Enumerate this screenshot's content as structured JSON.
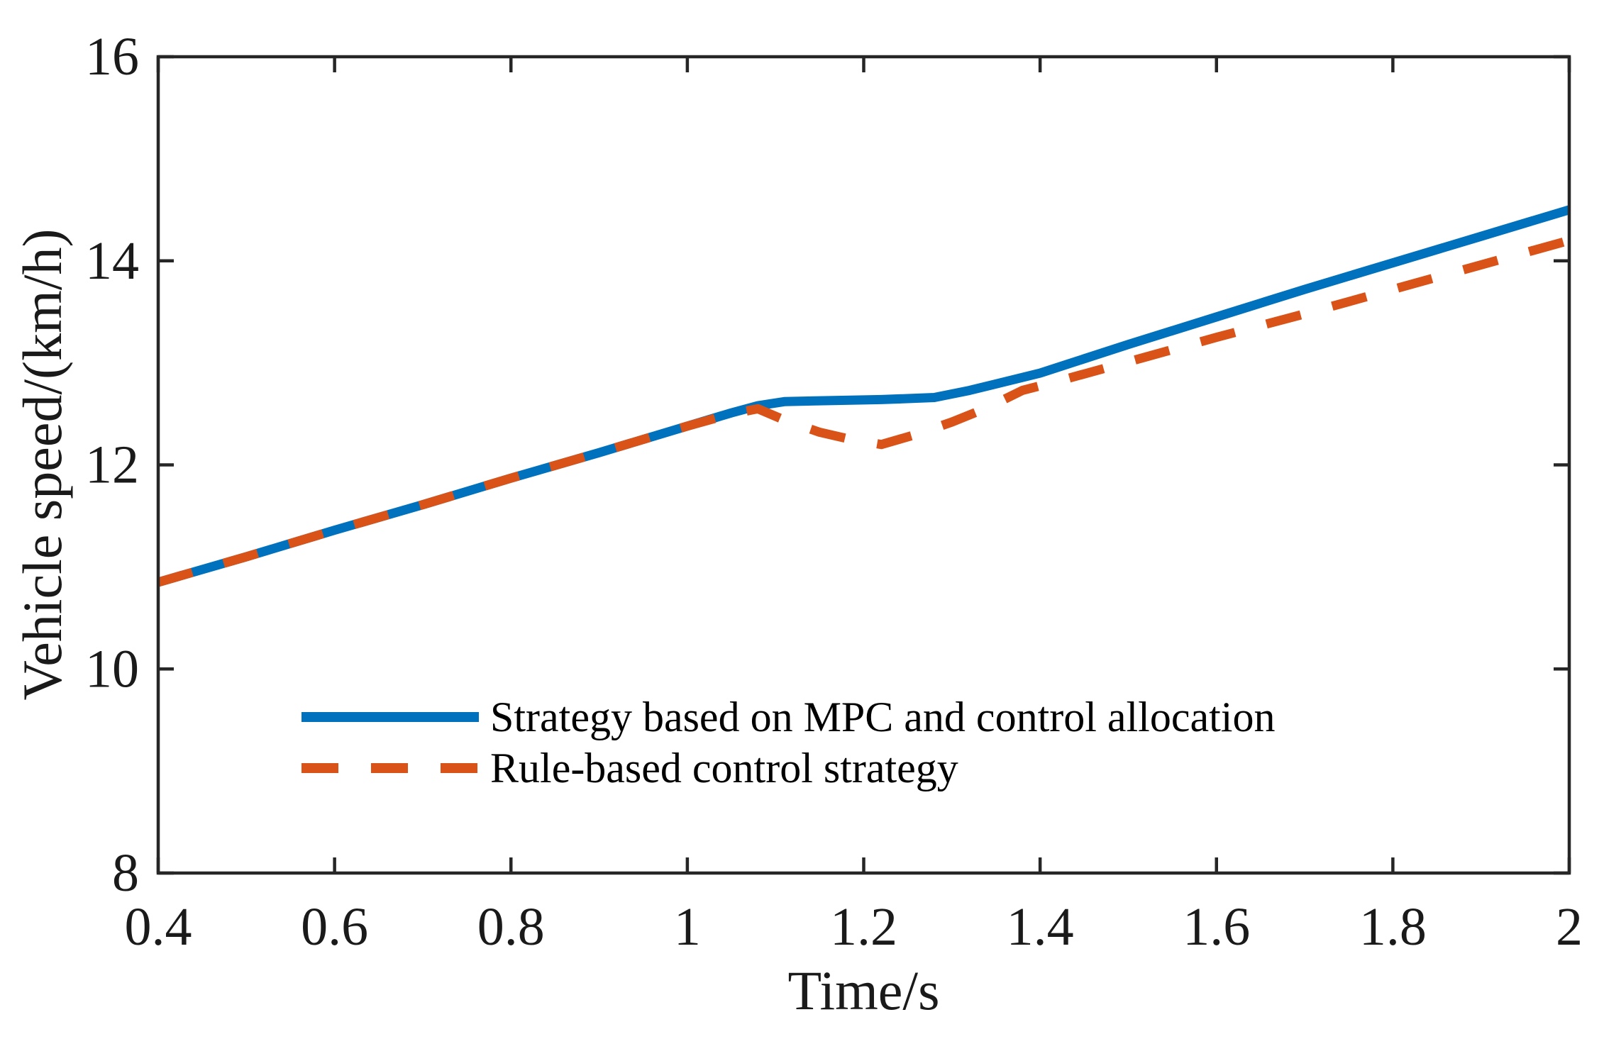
{
  "figure": {
    "background_color": "#ffffff",
    "axis_color": "#262626",
    "text_color": "#1a1a1a"
  },
  "chart_data": {
    "type": "line",
    "title": "",
    "xlabel": "Time/s",
    "ylabel": "Vehicle speed/(km/h)",
    "xlim": [
      0.4,
      2
    ],
    "ylim": [
      8,
      16
    ],
    "x_ticks": [
      0.4,
      0.6,
      0.8,
      1,
      1.2,
      1.4,
      1.6,
      1.8,
      2
    ],
    "x_tick_labels": [
      "0.4",
      "0.6",
      "0.8",
      "1",
      "1.2",
      "1.4",
      "1.6",
      "1.8",
      "2"
    ],
    "y_ticks": [
      8,
      10,
      12,
      14,
      16
    ],
    "y_tick_labels": [
      "8",
      "10",
      "12",
      "14",
      "16"
    ],
    "grid": false,
    "tick_direction": "in",
    "box": true,
    "legend_position": "inside-lower-left",
    "series": [
      {
        "name": "Strategy based on MPC and control allocation",
        "color": "#0072BD",
        "style": "solid",
        "dash": null,
        "points": [
          [
            0.4,
            10.85
          ],
          [
            0.5,
            11.1
          ],
          [
            0.6,
            11.36
          ],
          [
            0.7,
            11.61
          ],
          [
            0.8,
            11.87
          ],
          [
            0.9,
            12.12
          ],
          [
            1.0,
            12.38
          ],
          [
            1.05,
            12.51
          ],
          [
            1.08,
            12.58
          ],
          [
            1.11,
            12.62
          ],
          [
            1.16,
            12.63
          ],
          [
            1.22,
            12.64
          ],
          [
            1.28,
            12.66
          ],
          [
            1.32,
            12.73
          ],
          [
            1.4,
            12.9
          ],
          [
            1.5,
            13.18
          ],
          [
            1.6,
            13.45
          ],
          [
            1.7,
            13.72
          ],
          [
            1.8,
            13.98
          ],
          [
            1.9,
            14.24
          ],
          [
            2.0,
            14.5
          ]
        ]
      },
      {
        "name": "Rule-based control strategy",
        "color": "#D95319",
        "style": "dashed",
        "dash": [
          50,
          46
        ],
        "points": [
          [
            0.4,
            10.85
          ],
          [
            0.5,
            11.1
          ],
          [
            0.6,
            11.36
          ],
          [
            0.7,
            11.61
          ],
          [
            0.8,
            11.87
          ],
          [
            0.9,
            12.12
          ],
          [
            1.0,
            12.38
          ],
          [
            1.05,
            12.5
          ],
          [
            1.08,
            12.55
          ],
          [
            1.11,
            12.44
          ],
          [
            1.15,
            12.32
          ],
          [
            1.18,
            12.26
          ],
          [
            1.22,
            12.2
          ],
          [
            1.26,
            12.3
          ],
          [
            1.3,
            12.42
          ],
          [
            1.34,
            12.56
          ],
          [
            1.38,
            12.73
          ],
          [
            1.42,
            12.82
          ],
          [
            1.5,
            13.01
          ],
          [
            1.6,
            13.25
          ],
          [
            1.7,
            13.48
          ],
          [
            1.8,
            13.72
          ],
          [
            1.9,
            13.96
          ],
          [
            2.0,
            14.2
          ]
        ]
      }
    ]
  }
}
